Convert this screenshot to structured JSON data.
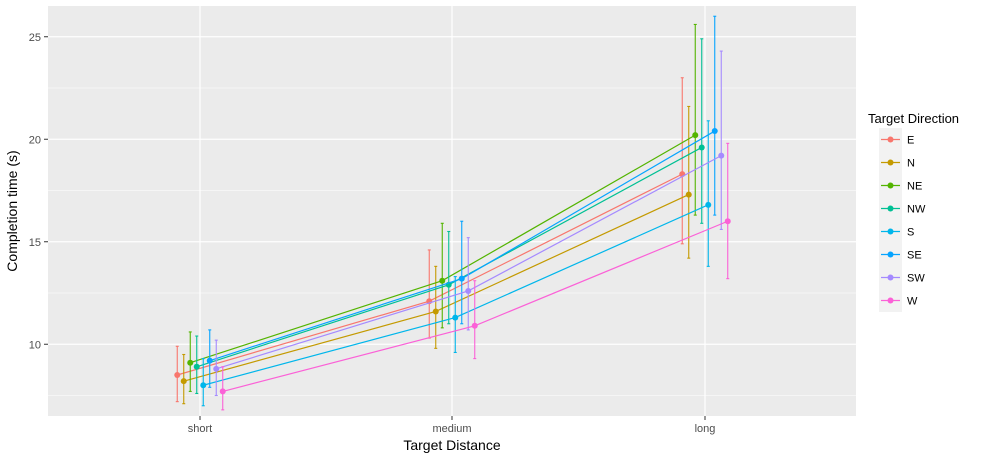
{
  "chart_data": {
    "type": "line",
    "title": "",
    "xlabel": "Target Distance",
    "ylabel": "Completion time (s)",
    "categories": [
      "short",
      "medium",
      "long"
    ],
    "ylim": [
      6.5,
      26.5
    ],
    "yticks": [
      10,
      15,
      20,
      25
    ],
    "grid": true,
    "legend": {
      "title": "Target Direction",
      "placement": "right"
    },
    "series": [
      {
        "name": "E",
        "color": "#F8766D",
        "values": [
          8.5,
          12.1,
          18.3
        ],
        "lower": [
          7.2,
          10.3,
          14.9
        ],
        "upper": [
          9.9,
          14.6,
          23.0
        ]
      },
      {
        "name": "N",
        "color": "#C49A00",
        "values": [
          8.2,
          11.6,
          17.3
        ],
        "lower": [
          7.1,
          9.8,
          14.2
        ],
        "upper": [
          9.5,
          13.8,
          21.6
        ]
      },
      {
        "name": "NE",
        "color": "#53B400",
        "values": [
          9.1,
          13.1,
          20.2
        ],
        "lower": [
          7.7,
          10.8,
          16.3
        ],
        "upper": [
          10.6,
          15.9,
          25.6
        ]
      },
      {
        "name": "NW",
        "color": "#00C094",
        "values": [
          8.9,
          12.9,
          19.6
        ],
        "lower": [
          7.6,
          11.0,
          15.9
        ],
        "upper": [
          10.4,
          15.5,
          24.9
        ]
      },
      {
        "name": "S",
        "color": "#00B6EB",
        "values": [
          8.0,
          11.3,
          16.8
        ],
        "lower": [
          7.0,
          9.6,
          13.8
        ],
        "upper": [
          9.3,
          13.3,
          20.9
        ]
      },
      {
        "name": "SE",
        "color": "#06A4FF",
        "values": [
          9.2,
          13.2,
          20.4
        ],
        "lower": [
          7.9,
          11.0,
          16.3
        ],
        "upper": [
          10.7,
          16.0,
          26.0
        ]
      },
      {
        "name": "SW",
        "color": "#A58AFF",
        "values": [
          8.8,
          12.6,
          19.2
        ],
        "lower": [
          7.5,
          10.7,
          15.6
        ],
        "upper": [
          10.2,
          15.2,
          24.3
        ]
      },
      {
        "name": "W",
        "color": "#FB61D7",
        "values": [
          7.7,
          10.9,
          16.0
        ],
        "lower": [
          6.8,
          9.3,
          13.2
        ],
        "upper": [
          8.9,
          13.1,
          19.8
        ]
      }
    ]
  }
}
